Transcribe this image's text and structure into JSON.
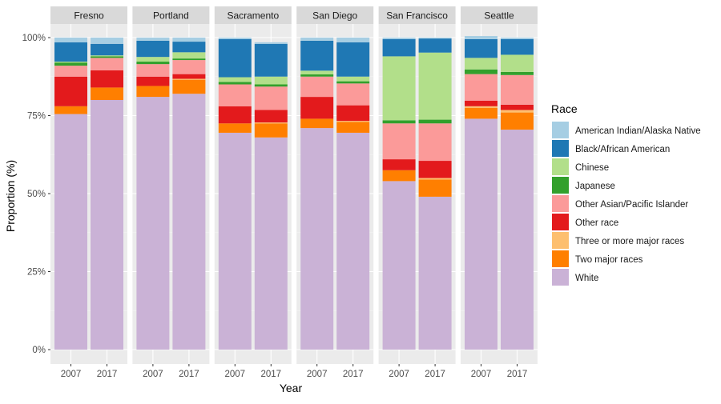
{
  "chart_data": {
    "type": "bar",
    "stacked": true,
    "facet_by": "city",
    "xlabel": "Year",
    "ylabel": "Proportion (%)",
    "ylim": [
      0,
      1
    ],
    "y_ticks": [
      0,
      0.25,
      0.5,
      0.75,
      1.0
    ],
    "y_tick_labels": [
      "0%",
      "25%",
      "50%",
      "75%",
      "100%"
    ],
    "categories": [
      "2007",
      "2017"
    ],
    "legend": {
      "title": "Race",
      "position": "right"
    },
    "stack_order_bottom_to_top": [
      "White",
      "Two major races",
      "Three or more major races",
      "Other race",
      "Other Asian/Pacific Islander",
      "Japanese",
      "Chinese",
      "Black/African American",
      "American Indian/Alaska Native"
    ],
    "series": [
      {
        "name": "American Indian/Alaska Native",
        "color": "#a6cee3"
      },
      {
        "name": "Black/African American",
        "color": "#1f78b4"
      },
      {
        "name": "Chinese",
        "color": "#b2df8a"
      },
      {
        "name": "Japanese",
        "color": "#33a02c"
      },
      {
        "name": "Other Asian/Pacific Islander",
        "color": "#fb9a99"
      },
      {
        "name": "Other race",
        "color": "#e31a1c"
      },
      {
        "name": "Three or more major races",
        "color": "#fdbf6f"
      },
      {
        "name": "Two major races",
        "color": "#ff7f00"
      },
      {
        "name": "White",
        "color": "#cab2d6"
      }
    ],
    "facets": [
      {
        "city": "Fresno",
        "values": {
          "2007": {
            "White": 0.755,
            "Two major races": 0.025,
            "Three or more major races": 0.0,
            "Other race": 0.095,
            "Other Asian/Pacific Islander": 0.035,
            "Japanese": 0.01,
            "Chinese": 0.003,
            "Black/African American": 0.062,
            "American Indian/Alaska Native": 0.015
          },
          "2017": {
            "White": 0.8,
            "Two major races": 0.04,
            "Three or more major races": 0.0,
            "Other race": 0.055,
            "Other Asian/Pacific Islander": 0.04,
            "Japanese": 0.005,
            "Chinese": 0.003,
            "Black/African American": 0.037,
            "American Indian/Alaska Native": 0.02
          }
        }
      },
      {
        "city": "Portland",
        "values": {
          "2007": {
            "White": 0.81,
            "Two major races": 0.035,
            "Three or more major races": 0.0,
            "Other race": 0.03,
            "Other Asian/Pacific Islander": 0.04,
            "Japanese": 0.008,
            "Chinese": 0.015,
            "Black/African American": 0.052,
            "American Indian/Alaska Native": 0.01
          },
          "2017": {
            "White": 0.82,
            "Two major races": 0.045,
            "Three or more major races": 0.003,
            "Other race": 0.015,
            "Other Asian/Pacific Islander": 0.045,
            "Japanese": 0.005,
            "Chinese": 0.02,
            "Black/African American": 0.034,
            "American Indian/Alaska Native": 0.013
          }
        }
      },
      {
        "city": "Sacramento",
        "values": {
          "2007": {
            "White": 0.695,
            "Two major races": 0.03,
            "Three or more major races": 0.0,
            "Other race": 0.055,
            "Other Asian/Pacific Islander": 0.07,
            "Japanese": 0.008,
            "Chinese": 0.015,
            "Black/African American": 0.122,
            "American Indian/Alaska Native": 0.005
          },
          "2017": {
            "White": 0.68,
            "Two major races": 0.045,
            "Three or more major races": 0.003,
            "Other race": 0.04,
            "Other Asian/Pacific Islander": 0.075,
            "Japanese": 0.007,
            "Chinese": 0.025,
            "Black/African American": 0.105,
            "American Indian/Alaska Native": 0.005
          }
        }
      },
      {
        "city": "San Diego",
        "values": {
          "2007": {
            "White": 0.71,
            "Two major races": 0.03,
            "Three or more major races": 0.0,
            "Other race": 0.07,
            "Other Asian/Pacific Islander": 0.065,
            "Japanese": 0.007,
            "Chinese": 0.012,
            "Black/African American": 0.096,
            "American Indian/Alaska Native": 0.01
          },
          "2017": {
            "White": 0.695,
            "Two major races": 0.035,
            "Three or more major races": 0.003,
            "Other race": 0.05,
            "Other Asian/Pacific Islander": 0.07,
            "Japanese": 0.007,
            "Chinese": 0.015,
            "Black/African American": 0.11,
            "American Indian/Alaska Native": 0.015
          }
        }
      },
      {
        "city": "San Francisco",
        "values": {
          "2007": {
            "White": 0.54,
            "Two major races": 0.035,
            "Three or more major races": 0.0,
            "Other race": 0.035,
            "Other Asian/Pacific Islander": 0.115,
            "Japanese": 0.01,
            "Chinese": 0.205,
            "Black/African American": 0.055,
            "American Indian/Alaska Native": 0.005
          },
          "2017": {
            "White": 0.49,
            "Two major races": 0.055,
            "Three or more major races": 0.005,
            "Other race": 0.055,
            "Other Asian/Pacific Islander": 0.12,
            "Japanese": 0.012,
            "Chinese": 0.215,
            "Black/African American": 0.045,
            "American Indian/Alaska Native": 0.003
          }
        }
      },
      {
        "city": "Seattle",
        "values": {
          "2007": {
            "White": 0.74,
            "Two major races": 0.035,
            "Three or more major races": 0.005,
            "Other race": 0.018,
            "Other Asian/Pacific Islander": 0.085,
            "Japanese": 0.015,
            "Chinese": 0.037,
            "Black/African American": 0.06,
            "American Indian/Alaska Native": 0.01
          },
          "2017": {
            "White": 0.705,
            "Two major races": 0.055,
            "Three or more major races": 0.008,
            "Other race": 0.017,
            "Other Asian/Pacific Islander": 0.095,
            "Japanese": 0.01,
            "Chinese": 0.055,
            "Black/African American": 0.05,
            "American Indian/Alaska Native": 0.005
          }
        }
      }
    ]
  }
}
